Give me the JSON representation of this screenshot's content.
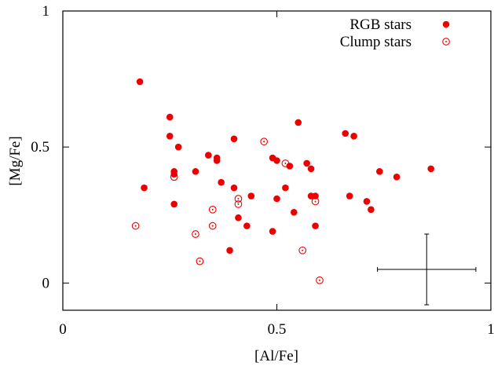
{
  "chart_data": {
    "type": "scatter",
    "xlabel": "[Al/Fe]",
    "ylabel": "[Mg/Fe]",
    "xlim": [
      0,
      1
    ],
    "ylim": [
      -0.1,
      1
    ],
    "xticks": [
      0,
      0.5,
      1
    ],
    "xtick_labels": [
      "0",
      "0.5",
      "1"
    ],
    "yticks": [
      0,
      0.5,
      1
    ],
    "ytick_labels": [
      "0",
      "0.5",
      "1"
    ],
    "grid": false,
    "legend_position": "top-right",
    "colors": {
      "marker": "#ee0000",
      "axes": "#000000"
    },
    "series": [
      {
        "name": "RGB stars",
        "marker": "filled-circle",
        "points": [
          [
            0.18,
            0.74
          ],
          [
            0.25,
            0.61
          ],
          [
            0.25,
            0.54
          ],
          [
            0.27,
            0.5
          ],
          [
            0.26,
            0.41
          ],
          [
            0.26,
            0.4
          ],
          [
            0.19,
            0.35
          ],
          [
            0.26,
            0.29
          ],
          [
            0.31,
            0.41
          ],
          [
            0.34,
            0.47
          ],
          [
            0.36,
            0.46
          ],
          [
            0.36,
            0.45
          ],
          [
            0.37,
            0.37
          ],
          [
            0.4,
            0.53
          ],
          [
            0.4,
            0.35
          ],
          [
            0.41,
            0.24
          ],
          [
            0.43,
            0.21
          ],
          [
            0.44,
            0.32
          ],
          [
            0.39,
            0.12
          ],
          [
            0.49,
            0.46
          ],
          [
            0.5,
            0.45
          ],
          [
            0.5,
            0.31
          ],
          [
            0.52,
            0.35
          ],
          [
            0.53,
            0.43
          ],
          [
            0.54,
            0.26
          ],
          [
            0.49,
            0.19
          ],
          [
            0.55,
            0.59
          ],
          [
            0.57,
            0.44
          ],
          [
            0.58,
            0.42
          ],
          [
            0.58,
            0.32
          ],
          [
            0.59,
            0.32
          ],
          [
            0.59,
            0.21
          ],
          [
            0.66,
            0.55
          ],
          [
            0.68,
            0.54
          ],
          [
            0.67,
            0.32
          ],
          [
            0.71,
            0.3
          ],
          [
            0.72,
            0.27
          ],
          [
            0.74,
            0.41
          ],
          [
            0.78,
            0.39
          ],
          [
            0.86,
            0.42
          ]
        ]
      },
      {
        "name": "Clump stars",
        "marker": "open-circle-dot",
        "points": [
          [
            0.17,
            0.21
          ],
          [
            0.26,
            0.39
          ],
          [
            0.31,
            0.18
          ],
          [
            0.32,
            0.08
          ],
          [
            0.35,
            0.27
          ],
          [
            0.35,
            0.21
          ],
          [
            0.41,
            0.31
          ],
          [
            0.41,
            0.29
          ],
          [
            0.47,
            0.52
          ],
          [
            0.52,
            0.44
          ],
          [
            0.56,
            0.12
          ],
          [
            0.59,
            0.3
          ],
          [
            0.6,
            0.01
          ]
        ]
      }
    ],
    "error_bar": {
      "x": 0.85,
      "y": 0.05,
      "xerr": 0.115,
      "yerr": 0.13
    }
  }
}
